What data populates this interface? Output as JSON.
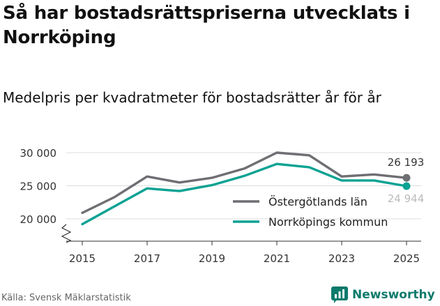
{
  "title": "Så har bostadsrättspriserna utvecklats i Norrköping",
  "subtitle": "Medelpris per kvadratmeter för bostadsrätter år för år",
  "source": "Källa: Svensk Mäklarstatistik",
  "brand": {
    "name": "Newsworthy",
    "icon": "newsworthy-logo-icon"
  },
  "chart_data": {
    "type": "line",
    "title": "Medelpris per kvadratmeter för bostadsrätter år för år",
    "xlabel": "",
    "ylabel": "",
    "x": [
      2015,
      2016,
      2017,
      2018,
      2019,
      2020,
      2021,
      2022,
      2023,
      2024,
      2025
    ],
    "xticks": [
      2015,
      2017,
      2019,
      2021,
      2023,
      2025
    ],
    "xtick_labels": [
      "2015",
      "2017",
      "2019",
      "2021",
      "2023",
      "2025"
    ],
    "yticks": [
      20000,
      25000,
      30000
    ],
    "ytick_labels": [
      "20 000",
      "25 000",
      "30 000"
    ],
    "ylim": [
      16500,
      30000
    ],
    "y_axis_break": true,
    "grid": true,
    "legend_position": "center-right",
    "series": [
      {
        "name": "Östergötlands län",
        "color": "#6e6e73",
        "values": [
          20900,
          23300,
          26400,
          25500,
          26200,
          27600,
          30000,
          29600,
          26400,
          26700,
          26193
        ],
        "end_label": "26 193"
      },
      {
        "name": "Norrköpings kommun",
        "color": "#0aa293",
        "values": [
          19200,
          21900,
          24600,
          24200,
          25100,
          26500,
          28300,
          27800,
          25800,
          25800,
          24944
        ],
        "end_label": "24 944"
      }
    ]
  }
}
